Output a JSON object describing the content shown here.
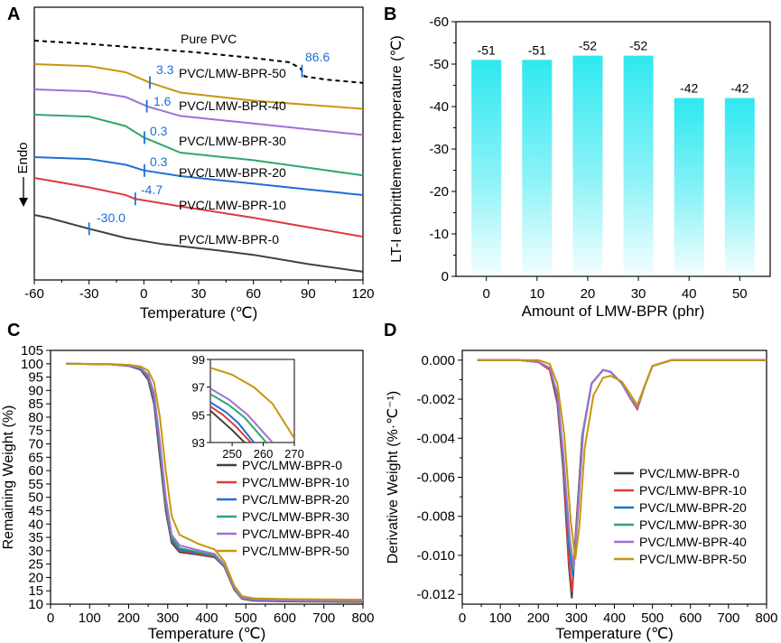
{
  "figure": {
    "panels": [
      {
        "letter": "A"
      },
      {
        "letter": "B"
      },
      {
        "letter": "C"
      },
      {
        "letter": "D"
      }
    ]
  },
  "chart_data": [
    {
      "id": "A",
      "type": "line",
      "title": "",
      "xlabel": "Temperature (℃)",
      "ylabel": "Endo",
      "ylim": null,
      "xlim": [
        -60,
        120
      ],
      "xticks": [
        -60,
        -30,
        0,
        30,
        60,
        90,
        120
      ],
      "y_axis": "hidden (DSC curves offset vertically, arbitrary units)",
      "series": [
        {
          "name": "Pure PVC",
          "color": "#000000",
          "style": "dashed",
          "tg": 86.6,
          "tg_label": "86.6",
          "x": [
            -60,
            -30,
            0,
            30,
            60,
            80,
            86,
            88,
            100,
            120
          ],
          "y": [
            0.0,
            -0.15,
            -0.35,
            -0.55,
            -0.8,
            -1.0,
            -1.3,
            -1.65,
            -1.8,
            -1.95
          ]
        },
        {
          "name": "PVC/LMW-BPR-50",
          "color": "#c7960c",
          "style": "solid",
          "tg": 3.3,
          "tg_label": "3.3",
          "x": [
            -60,
            -30,
            -10,
            3,
            20,
            40,
            60,
            90,
            120
          ],
          "y": [
            0.0,
            -0.05,
            -0.2,
            -0.45,
            -0.7,
            -0.8,
            -0.9,
            -1.0,
            -1.1
          ]
        },
        {
          "name": "PVC/LMW-BPR-40",
          "color": "#a070d6",
          "style": "solid",
          "tg": 1.6,
          "tg_label": "1.6",
          "x": [
            -60,
            -30,
            -10,
            2,
            20,
            40,
            60,
            90,
            120
          ],
          "y": [
            0.0,
            -0.05,
            -0.2,
            -0.45,
            -0.7,
            -0.8,
            -0.9,
            -1.05,
            -1.2
          ]
        },
        {
          "name": "PVC/LMW-BPR-30",
          "color": "#2ea86b",
          "style": "solid",
          "tg": 0.3,
          "tg_label": "0.3",
          "x": [
            -60,
            -30,
            -10,
            0,
            20,
            40,
            60,
            90,
            120
          ],
          "y": [
            0.0,
            -0.05,
            -0.3,
            -0.6,
            -1.0,
            -1.1,
            -1.2,
            -1.4,
            -1.6
          ]
        },
        {
          "name": "PVC/LMW-BPR-20",
          "color": "#1d6fd6",
          "style": "solid",
          "tg": 0.3,
          "tg_label": "0.3",
          "x": [
            -60,
            -30,
            -10,
            0,
            20,
            40,
            60,
            90,
            120
          ],
          "y": [
            0.0,
            -0.05,
            -0.2,
            -0.35,
            -0.5,
            -0.6,
            -0.7,
            -0.85,
            -1.0
          ]
        },
        {
          "name": "PVC/LMW-BPR-10",
          "color": "#e03a3a",
          "style": "solid",
          "tg": -4.7,
          "tg_label": "-4.7",
          "x": [
            -60,
            -30,
            -10,
            -5,
            20,
            40,
            60,
            90,
            120
          ],
          "y": [
            0.0,
            -0.25,
            -0.45,
            -0.55,
            -0.75,
            -0.9,
            -1.05,
            -1.3,
            -1.55
          ]
        },
        {
          "name": "PVC/LMW-BPR-0",
          "color": "#404040",
          "style": "solid",
          "tg": -30.0,
          "tg_label": "-30.0",
          "x": [
            -60,
            -52,
            -30,
            -10,
            10,
            40,
            60,
            90,
            120
          ],
          "y": [
            0.0,
            -0.1,
            -0.45,
            -0.75,
            -0.95,
            -1.15,
            -1.3,
            -1.6,
            -1.85
          ]
        }
      ]
    },
    {
      "id": "B",
      "type": "bar",
      "title": "",
      "xlabel": "Amount of LMW-BPR (phr)",
      "ylabel": "LT-I embrittlement temperature (℃)",
      "categories": [
        "0",
        "10",
        "20",
        "30",
        "40",
        "50"
      ],
      "values": [
        -51,
        -51,
        -52,
        -52,
        -42,
        -42
      ],
      "labels": [
        "-51",
        "-51",
        "-52",
        "-52",
        "-42",
        "-42"
      ],
      "ylim": [
        0,
        -60
      ],
      "yticks": [
        0,
        -10,
        -20,
        -30,
        -40,
        -50,
        -60
      ],
      "bar_color": "#2ee8f0"
    },
    {
      "id": "C",
      "type": "line",
      "title": "",
      "xlabel": "Temperature (℃)",
      "ylabel": "Remaining Weight (%)",
      "xlim": [
        0,
        800
      ],
      "ylim": [
        10,
        105
      ],
      "xticks": [
        0,
        100,
        200,
        300,
        400,
        500,
        600,
        700,
        800
      ],
      "yticks": [
        10,
        15,
        20,
        25,
        30,
        35,
        40,
        45,
        50,
        55,
        60,
        65,
        70,
        75,
        80,
        85,
        90,
        95,
        100,
        105
      ],
      "legend": "bottom-right",
      "series": [
        {
          "name": "PVC/LMW-BPR-0",
          "color": "#404040",
          "x": [
            40,
            150,
            200,
            230,
            250,
            265,
            280,
            295,
            310,
            330,
            380,
            420,
            445,
            470,
            490,
            520,
            600,
            800
          ],
          "y": [
            100,
            99.8,
            99.2,
            97.8,
            94,
            85,
            65,
            45,
            33,
            29.5,
            28.5,
            27.5,
            24,
            15.5,
            12,
            11.3,
            11,
            10.8
          ]
        },
        {
          "name": "PVC/LMW-BPR-10",
          "color": "#e03a3a",
          "x": [
            40,
            150,
            200,
            230,
            250,
            265,
            280,
            295,
            310,
            330,
            380,
            420,
            445,
            470,
            490,
            520,
            600,
            800
          ],
          "y": [
            100,
            99.8,
            99.3,
            98,
            94.5,
            86,
            67,
            46,
            33.5,
            30,
            28.8,
            27.7,
            24,
            15.6,
            12.1,
            11.4,
            11.1,
            10.9
          ]
        },
        {
          "name": "PVC/LMW-BPR-20",
          "color": "#1d6fd6",
          "x": [
            40,
            150,
            200,
            230,
            250,
            265,
            280,
            295,
            310,
            330,
            380,
            420,
            445,
            470,
            490,
            520,
            600,
            800
          ],
          "y": [
            100,
            99.8,
            99.3,
            98.1,
            95,
            87,
            68,
            47,
            34,
            30.5,
            29.2,
            28,
            24.2,
            15.8,
            12.2,
            11.5,
            11.2,
            11
          ]
        },
        {
          "name": "PVC/LMW-BPR-30",
          "color": "#2ea86b",
          "x": [
            40,
            150,
            200,
            230,
            250,
            265,
            280,
            295,
            310,
            330,
            380,
            420,
            445,
            470,
            490,
            520,
            600,
            800
          ],
          "y": [
            100,
            99.8,
            99.4,
            98.3,
            95.5,
            88,
            69,
            48,
            35,
            31,
            29.5,
            28.2,
            24.4,
            16,
            12.3,
            11.6,
            11.3,
            11.1
          ]
        },
        {
          "name": "PVC/LMW-BPR-40",
          "color": "#a070d6",
          "x": [
            40,
            150,
            200,
            230,
            250,
            265,
            280,
            295,
            310,
            330,
            380,
            420,
            445,
            470,
            490,
            520,
            600,
            800
          ],
          "y": [
            100,
            99.8,
            99.4,
            98.4,
            96,
            89,
            71,
            50,
            36,
            32,
            30.2,
            28.8,
            24.8,
            16.2,
            12.4,
            11.7,
            11.4,
            11.2
          ]
        },
        {
          "name": "PVC/LMW-BPR-50",
          "color": "#c7960c",
          "x": [
            40,
            150,
            200,
            230,
            250,
            265,
            280,
            295,
            310,
            330,
            380,
            420,
            445,
            470,
            490,
            520,
            600,
            800
          ],
          "y": [
            100,
            99.9,
            99.6,
            99,
            97.5,
            93,
            80,
            60,
            43,
            36,
            32.5,
            30.5,
            26,
            17,
            13,
            12.2,
            11.9,
            11.7
          ]
        }
      ],
      "inset": {
        "xlim": [
          243,
          270
        ],
        "ylim": [
          93,
          99
        ],
        "xticks": [
          250,
          260,
          270
        ],
        "yticks": [
          93,
          95,
          97,
          99
        ],
        "series": [
          {
            "name": "PVC/LMW-BPR-0",
            "color": "#404040",
            "x": [
              243,
              246,
              250,
              254
            ],
            "y": [
              95.3,
              94.7,
              93.9,
              93.0
            ]
          },
          {
            "name": "PVC/LMW-BPR-10",
            "color": "#e03a3a",
            "x": [
              243,
              247,
              251,
              256
            ],
            "y": [
              95.6,
              95.0,
              94.2,
              93.0
            ]
          },
          {
            "name": "PVC/LMW-BPR-20",
            "color": "#1d6fd6",
            "x": [
              243,
              248,
              252,
              257
            ],
            "y": [
              95.9,
              95.2,
              94.4,
              93.0
            ]
          },
          {
            "name": "PVC/LMW-BPR-30",
            "color": "#2ea86b",
            "x": [
              243,
              249,
              254,
              261
            ],
            "y": [
              96.5,
              95.7,
              94.8,
              93.0
            ]
          },
          {
            "name": "PVC/LMW-BPR-40",
            "color": "#a070d6",
            "x": [
              243,
              249,
              255,
              263
            ],
            "y": [
              96.9,
              96.1,
              95.0,
              93.0
            ]
          },
          {
            "name": "PVC/LMW-BPR-50",
            "color": "#c7960c",
            "x": [
              243,
              250,
              257,
              263,
              270
            ],
            "y": [
              98.4,
              97.9,
              97.0,
              95.8,
              93.3
            ]
          }
        ]
      }
    },
    {
      "id": "D",
      "type": "line",
      "title": "",
      "xlabel": "Temperature (℃)",
      "ylabel": "Derivative Weight (%·℃⁻¹)",
      "xlim": [
        0,
        800
      ],
      "ylim": [
        -0.0125,
        0.0005
      ],
      "xticks": [
        0,
        100,
        200,
        300,
        400,
        500,
        600,
        700,
        800
      ],
      "yticks": [
        0.0,
        -0.002,
        -0.004,
        -0.006,
        -0.008,
        -0.01,
        -0.012
      ],
      "ytick_labels": [
        "0.000",
        "-0.002",
        "-0.004",
        "-0.006",
        "-0.008",
        "-0.010",
        "-0.012"
      ],
      "legend": "bottom-right",
      "series": [
        {
          "name": "PVC/LMW-BPR-0",
          "color": "#404040",
          "x": [
            40,
            150,
            200,
            230,
            250,
            265,
            280,
            288,
            298,
            315,
            340,
            370,
            390,
            420,
            440,
            460,
            480,
            500,
            550,
            800
          ],
          "y": [
            0,
            0,
            -0.0001,
            -0.0005,
            -0.0022,
            -0.0055,
            -0.0105,
            -0.0122,
            -0.009,
            -0.004,
            -0.0012,
            -0.0005,
            -0.0006,
            -0.0012,
            -0.0019,
            -0.0025,
            -0.0013,
            -0.0003,
            0,
            0
          ]
        },
        {
          "name": "PVC/LMW-BPR-10",
          "color": "#e03a3a",
          "x": [
            40,
            150,
            200,
            230,
            250,
            265,
            280,
            289,
            299,
            315,
            340,
            370,
            390,
            420,
            440,
            460,
            480,
            500,
            550,
            800
          ],
          "y": [
            0,
            0,
            -0.0001,
            -0.0005,
            -0.0021,
            -0.0053,
            -0.0102,
            -0.0119,
            -0.0088,
            -0.0039,
            -0.0012,
            -0.0005,
            -0.0006,
            -0.0012,
            -0.0019,
            -0.0025,
            -0.0013,
            -0.0003,
            0,
            0
          ]
        },
        {
          "name": "PVC/LMW-BPR-20",
          "color": "#1d6fd6",
          "x": [
            40,
            150,
            200,
            230,
            250,
            265,
            282,
            291,
            301,
            316,
            340,
            370,
            390,
            420,
            440,
            460,
            480,
            500,
            550,
            800
          ],
          "y": [
            0,
            0,
            -0.0001,
            -0.0004,
            -0.0019,
            -0.005,
            -0.0098,
            -0.0111,
            -0.0085,
            -0.0038,
            -0.0012,
            -0.0005,
            -0.0006,
            -0.0012,
            -0.0019,
            -0.0024,
            -0.0013,
            -0.0003,
            0,
            0
          ]
        },
        {
          "name": "PVC/LMW-BPR-30",
          "color": "#2ea86b",
          "x": [
            40,
            150,
            200,
            230,
            250,
            265,
            283,
            292,
            302,
            317,
            340,
            370,
            390,
            420,
            440,
            460,
            480,
            500,
            550,
            800
          ],
          "y": [
            0,
            0,
            -0.0001,
            -0.0004,
            -0.0018,
            -0.0048,
            -0.0095,
            -0.0108,
            -0.0083,
            -0.0037,
            -0.0012,
            -0.0005,
            -0.0006,
            -0.0012,
            -0.0019,
            -0.0024,
            -0.0013,
            -0.0003,
            0,
            0
          ]
        },
        {
          "name": "PVC/LMW-BPR-40",
          "color": "#a070d6",
          "x": [
            40,
            150,
            200,
            230,
            250,
            265,
            283,
            293,
            303,
            318,
            340,
            370,
            390,
            420,
            440,
            460,
            480,
            500,
            550,
            800
          ],
          "y": [
            0,
            0,
            -0.0001,
            -0.0004,
            -0.0017,
            -0.0046,
            -0.0092,
            -0.0106,
            -0.0082,
            -0.0037,
            -0.0012,
            -0.0005,
            -0.0006,
            -0.0012,
            -0.0019,
            -0.0024,
            -0.0013,
            -0.0003,
            0,
            0
          ]
        },
        {
          "name": "PVC/LMW-BPR-50",
          "color": "#c7960c",
          "x": [
            40,
            150,
            200,
            230,
            250,
            268,
            285,
            297,
            308,
            322,
            345,
            370,
            390,
            420,
            440,
            460,
            480,
            500,
            550,
            800
          ],
          "y": [
            0,
            0,
            0,
            -0.0002,
            -0.0012,
            -0.0038,
            -0.0082,
            -0.0102,
            -0.0085,
            -0.0045,
            -0.0018,
            -0.0009,
            -0.0008,
            -0.0011,
            -0.0017,
            -0.0023,
            -0.0013,
            -0.0003,
            0,
            0
          ]
        }
      ]
    }
  ]
}
